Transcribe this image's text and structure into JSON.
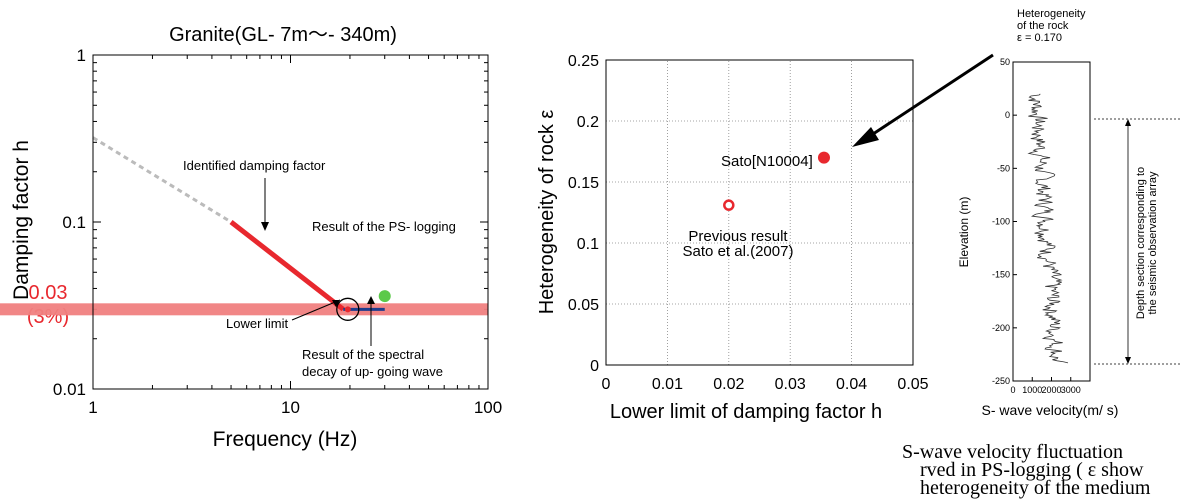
{
  "chart_data": [
    {
      "type": "line",
      "title": "Granite(GL- 7m〜- 340m)",
      "xlabel": "Frequency (Hz)",
      "ylabel": "Damping factor h",
      "x_scale": "log",
      "y_scale": "log",
      "xlim": [
        1,
        100
      ],
      "ylim": [
        0.01,
        1
      ],
      "x_ticks": [
        "1",
        "10",
        "100"
      ],
      "y_ticks": [
        "0.01",
        "0.1",
        "1"
      ],
      "highlight_band": {
        "value": 0.03,
        "label_value": "0.03",
        "label_percent": "(3%)",
        "color": "#f08080"
      },
      "series": [
        {
          "role": "extrapolated",
          "color": "#bbbbbb",
          "x": [
            1,
            5
          ],
          "y": [
            0.32,
            0.1
          ]
        },
        {
          "role": "identified",
          "color": "#e8282e",
          "x": [
            5,
            18.5
          ],
          "y": [
            0.1,
            0.03
          ]
        },
        {
          "role": "spectral-decay",
          "color": "#1f3b8c",
          "x": [
            18.5,
            30
          ],
          "y": [
            0.03,
            0.03
          ]
        },
        {
          "role": "ps-logging",
          "color": "#5cc94a",
          "x": [
            30
          ],
          "y": [
            0.036
          ]
        }
      ],
      "lower_limit_marker": {
        "x": 19.5,
        "y": 0.03,
        "color": "#e8282e"
      },
      "annotations": {
        "identified": "Identified damping factor",
        "ps_logging": "Result of the PS- logging",
        "lower_limit": "Lower limit",
        "spectral_line1": "Result of the spectral",
        "spectral_line2": "decay of up- going wave"
      }
    },
    {
      "type": "scatter",
      "title": "",
      "xlabel": "Lower limit of damping factor h",
      "ylabel": "Heterogeneity of rock ε",
      "xlim": [
        0,
        0.05
      ],
      "ylim": [
        0,
        0.25
      ],
      "grid": true,
      "x_ticks": [
        "0",
        "0.01",
        "0.02",
        "0.03",
        "0.04",
        "0.05"
      ],
      "y_ticks": [
        "0",
        "0.05",
        "0.1",
        "0.15",
        "0.2",
        "0.25"
      ],
      "points": [
        {
          "x": 0.0355,
          "y": 0.17,
          "style": "filled",
          "color": "#e8282e",
          "label": "Sato[N10004]"
        },
        {
          "x": 0.02,
          "y": 0.131,
          "style": "open",
          "color": "#e8282e",
          "label_line1": "Previous result",
          "label_line2": "Sato et al.(2007)"
        }
      ]
    },
    {
      "type": "line",
      "title": "",
      "xlabel": "S- wave velocity(m/ s)",
      "ylabel": "Elevation (m)",
      "xlim": [
        0,
        4000
      ],
      "ylim": [
        -250,
        50
      ],
      "x_ticks": [
        "0",
        "1000",
        "2000",
        "3000"
      ],
      "y_ticks": [
        "50",
        "0",
        "-50",
        "-100",
        "-150",
        "-200",
        "-250"
      ],
      "depth_section": {
        "top": 20,
        "bottom": -233,
        "label_line1": "Depth section corresponding to",
        "label_line2": "the seismic observation array"
      },
      "profile": {
        "color": "#333333",
        "depth_range": [
          20,
          -233
        ],
        "velocity_range": [
          800,
          3000
        ]
      }
    }
  ],
  "heterogeneity_callout": {
    "line1": "Heterogeneity",
    "line2": "of the rock",
    "line3": "ε = 0.170"
  },
  "caption": {
    "line1": "S-wave velocity fluctuation",
    "line2": "rved in PS-logging ( ε show",
    "line3": "heterogeneity of the medium"
  },
  "colors": {
    "red": "#e8282e",
    "blue": "#1f3b8c",
    "green": "#5cc94a",
    "band": "#f08080",
    "grey": "#bbbbbb"
  }
}
